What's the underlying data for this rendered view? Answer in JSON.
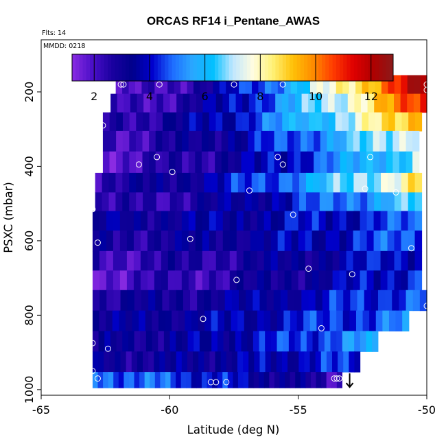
{
  "chart_data": {
    "type": "heatmap",
    "title": "ORCAS RF14 i_Pentane_AWAS",
    "annotations": {
      "flights": "Flts: 14",
      "date": "MMDD: 0218"
    },
    "xlabel": "Latitude (deg N)",
    "ylabel": "PSXC (mbar)",
    "xlim": [
      -65,
      -50
    ],
    "ylim": [
      1015,
      60
    ],
    "y_reversed": true,
    "x_ticks": [
      -65,
      -60,
      -55,
      -50
    ],
    "x_tick_labels": [
      "-65",
      "-60",
      "-55",
      "-50"
    ],
    "y_ticks": [
      200,
      400,
      600,
      800,
      1000
    ],
    "y_tick_labels": [
      "200",
      "400",
      "600",
      "800",
      "1000"
    ],
    "colorbar": {
      "min": 1.2,
      "max": 12.8,
      "ticks": [
        2,
        4,
        6,
        8,
        10,
        12
      ],
      "tick_labels": [
        "2",
        "4",
        "6",
        "8",
        "10",
        "12"
      ],
      "colors": [
        "#8a2be2",
        "#4b0fc8",
        "#1a00a0",
        "#00008b",
        "#0000cd",
        "#1e6cff",
        "#2ba8ff",
        "#00bfff",
        "#bfe6ff",
        "#fffde0",
        "#fff176",
        "#ffc107",
        "#ff8c00",
        "#ff3c00",
        "#e00000",
        "#b00000",
        "#8b1a1a"
      ]
    },
    "layers": [
      {
        "p": 180,
        "x0": -62.1,
        "x1": -50,
        "v0": 1.6,
        "v1": 12.3
      },
      {
        "p": 230,
        "x0": -62.3,
        "x1": -50,
        "v0": 1.9,
        "v1": 11.0
      },
      {
        "p": 280,
        "x0": -62.6,
        "x1": -50.2,
        "v0": 2.5,
        "v1": 9.5
      },
      {
        "p": 330,
        "x0": -62.6,
        "x1": -50.3,
        "v0": 2.2,
        "v1": 7.8
      },
      {
        "p": 390,
        "x0": -62.6,
        "x1": -50.3,
        "v0": 2.0,
        "v1": 7.0
      },
      {
        "p": 445,
        "x0": -62.9,
        "x1": -50.2,
        "v0": 2.6,
        "v1": 8.5
      },
      {
        "p": 495,
        "x0": -62.9,
        "x1": -50.2,
        "v0": 2.2,
        "v1": 6.5
      },
      {
        "p": 545,
        "x0": -63.0,
        "x1": -50.2,
        "v0": 3.2,
        "v1": 4.6
      },
      {
        "p": 600,
        "x0": -63.0,
        "x1": -50.2,
        "v0": 2.8,
        "v1": 4.8
      },
      {
        "p": 655,
        "x0": -63.0,
        "x1": -50.2,
        "v0": 2.3,
        "v1": 4.3
      },
      {
        "p": 705,
        "x0": -63.0,
        "x1": -50.2,
        "v0": 2.0,
        "v1": 4.5
      },
      {
        "p": 760,
        "x0": -63.0,
        "x1": -50.0,
        "v0": 2.8,
        "v1": 4.9
      },
      {
        "p": 815,
        "x0": -63.0,
        "x1": -50.7,
        "v0": 3.2,
        "v1": 5.0
      },
      {
        "p": 870,
        "x0": -63.0,
        "x1": -51.9,
        "v0": 3.0,
        "v1": 5.4
      },
      {
        "p": 925,
        "x0": -63.0,
        "x1": -52.6,
        "v0": 3.0,
        "v1": 4.4
      },
      {
        "p": 980,
        "x0": -63.0,
        "x1": -53.3,
        "v0": 5.0,
        "v1": 2.2
      }
    ],
    "samples": [
      {
        "lat": -61.9,
        "p": 180
      },
      {
        "lat": -61.8,
        "p": 180
      },
      {
        "lat": -60.4,
        "p": 180
      },
      {
        "lat": -57.5,
        "p": 180
      },
      {
        "lat": -55.6,
        "p": 180
      },
      {
        "lat": -50.0,
        "p": 180
      },
      {
        "lat": -50.0,
        "p": 195
      },
      {
        "lat": -62.6,
        "p": 290
      },
      {
        "lat": -60.5,
        "p": 375
      },
      {
        "lat": -55.8,
        "p": 375
      },
      {
        "lat": -52.2,
        "p": 375
      },
      {
        "lat": -61.2,
        "p": 395
      },
      {
        "lat": -55.6,
        "p": 395
      },
      {
        "lat": -59.9,
        "p": 415
      },
      {
        "lat": -56.9,
        "p": 465
      },
      {
        "lat": -52.4,
        "p": 460
      },
      {
        "lat": -51.2,
        "p": 470
      },
      {
        "lat": -63.0,
        "p": 515
      },
      {
        "lat": -55.2,
        "p": 530
      },
      {
        "lat": -59.2,
        "p": 595
      },
      {
        "lat": -62.8,
        "p": 605
      },
      {
        "lat": -50.6,
        "p": 620
      },
      {
        "lat": -54.6,
        "p": 675
      },
      {
        "lat": -52.9,
        "p": 690
      },
      {
        "lat": -57.4,
        "p": 705
      },
      {
        "lat": -50.0,
        "p": 775
      },
      {
        "lat": -58.7,
        "p": 810
      },
      {
        "lat": -54.1,
        "p": 835
      },
      {
        "lat": -63.0,
        "p": 875
      },
      {
        "lat": -62.4,
        "p": 890
      },
      {
        "lat": -63.0,
        "p": 950
      },
      {
        "lat": -62.8,
        "p": 970
      },
      {
        "lat": -53.6,
        "p": 970
      },
      {
        "lat": -53.5,
        "p": 970
      },
      {
        "lat": -53.4,
        "p": 970
      },
      {
        "lat": -58.4,
        "p": 980
      },
      {
        "lat": -58.2,
        "p": 980
      },
      {
        "lat": -57.8,
        "p": 980
      }
    ],
    "arrow_marker": {
      "lat": -53.0,
      "p": 960
    }
  }
}
